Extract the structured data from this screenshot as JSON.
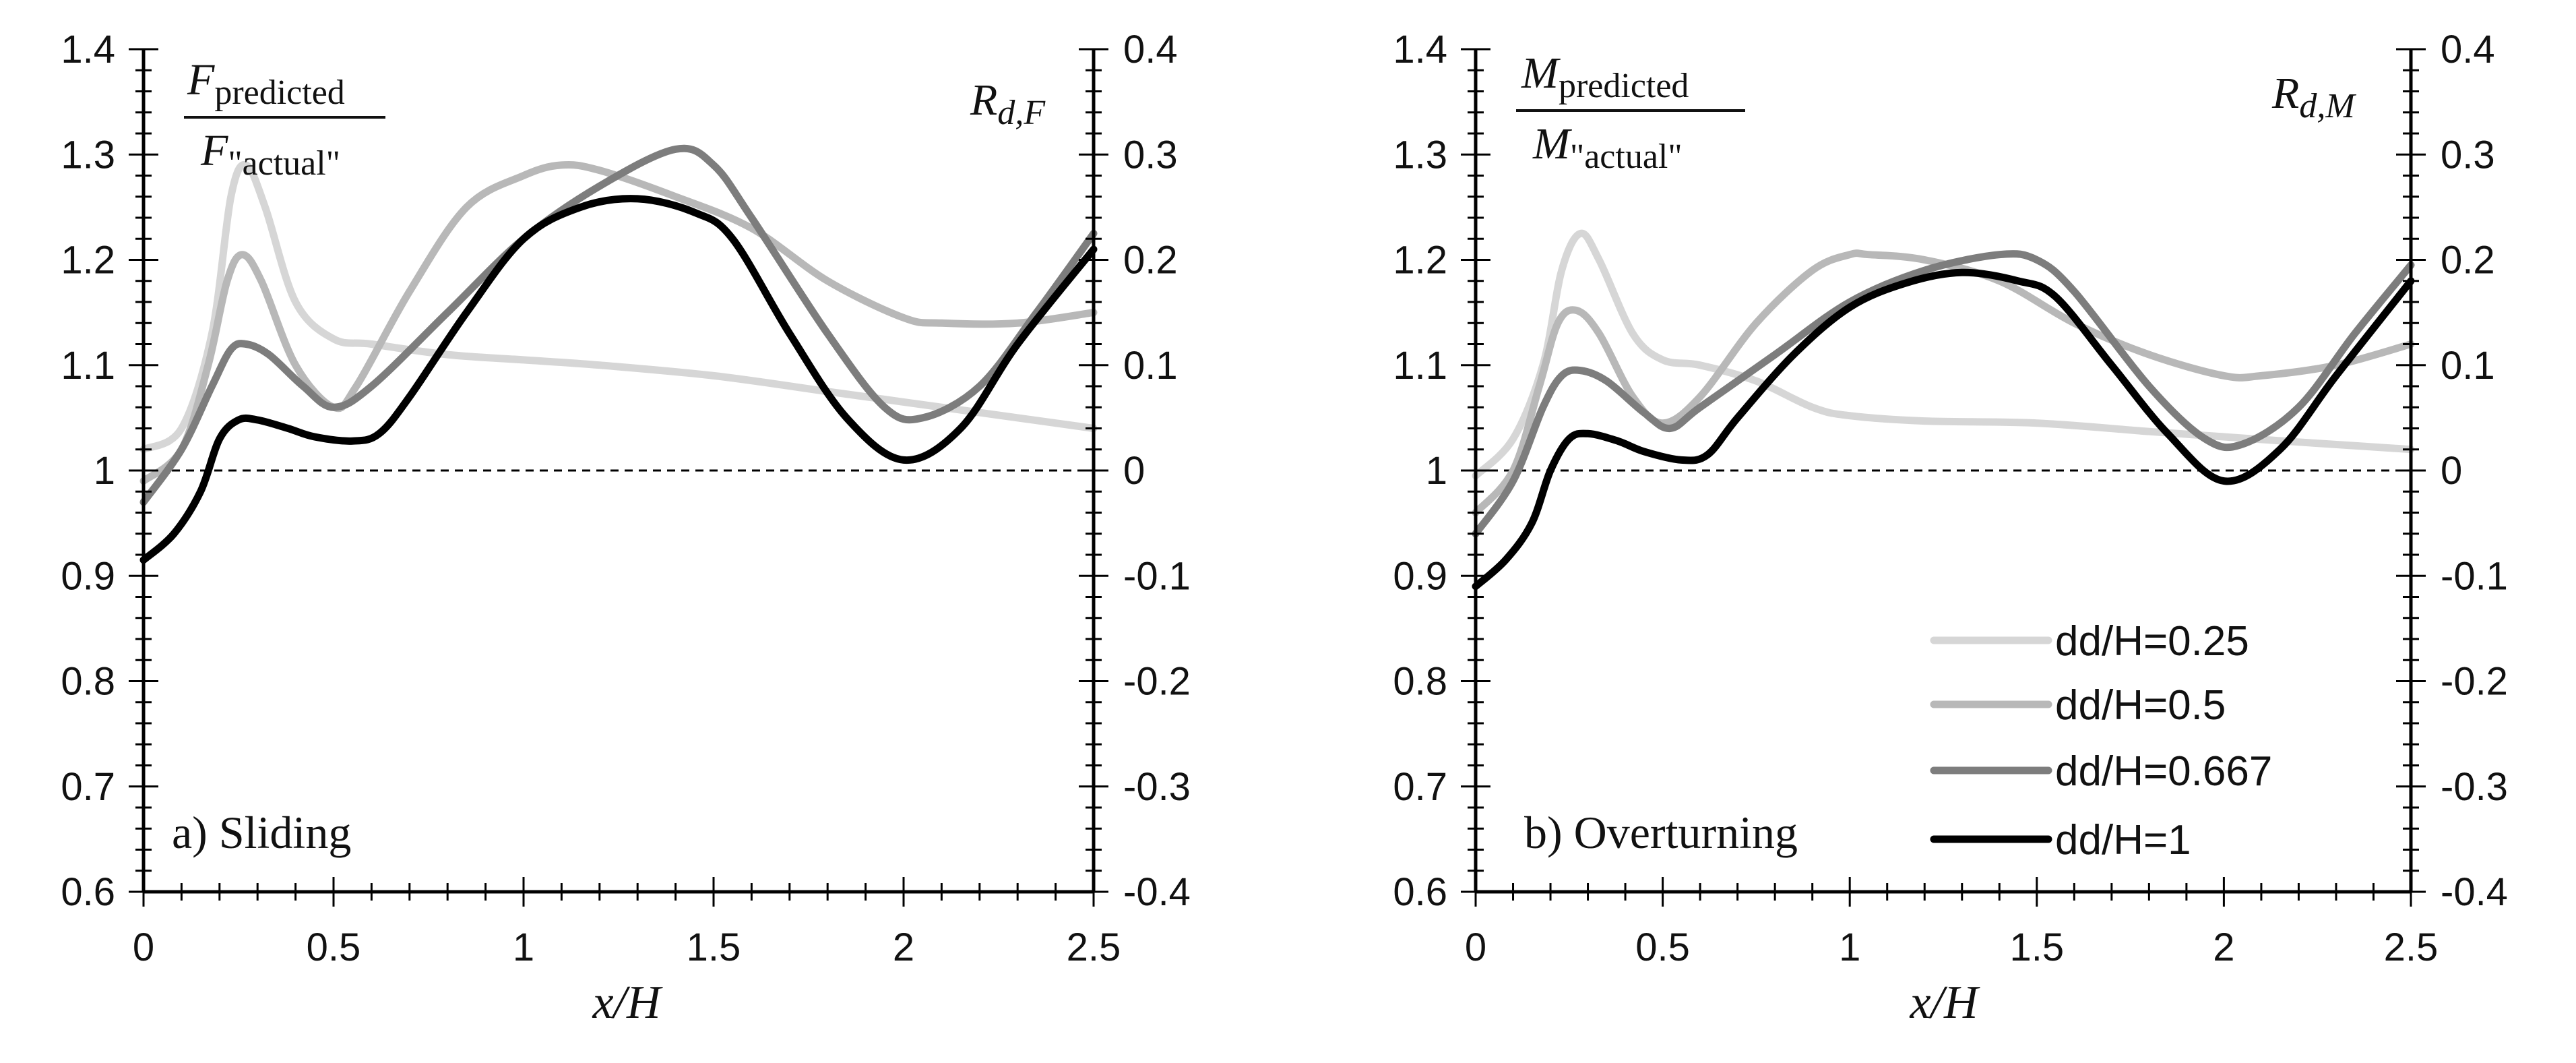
{
  "colors": {
    "s025": "#d6d6d6",
    "s05": "#b8b8b8",
    "s0667": "#7d7d7d",
    "s1": "#000000",
    "axis": "#000000",
    "reference": "#000000"
  },
  "legend": {
    "position": "bottom-right of panel b",
    "entries": [
      "dd/H=0.25",
      "dd/H=0.5",
      "dd/H=0.667",
      "dd/H=1"
    ]
  },
  "chart_data": [
    {
      "type": "line",
      "panel_label": "a) Sliding",
      "xlabel": "x/H",
      "ylabel_ratio": {
        "numerator_base": "F",
        "numerator_sub": "predicted",
        "denominator_base": "F",
        "denominator_sub": "\"actual\""
      },
      "y2label": {
        "base": "R",
        "sub": "d,F"
      },
      "xlim": [
        0,
        2.5
      ],
      "ylim": [
        0.6,
        1.4
      ],
      "y2lim": [
        -0.4,
        0.4
      ],
      "x_ticks": [
        "0",
        "0.5",
        "1",
        "1.5",
        "2",
        "2.5"
      ],
      "y_ticks": [
        "0.6",
        "0.7",
        "0.8",
        "0.9",
        "1",
        "1.1",
        "1.2",
        "1.3",
        "1.4"
      ],
      "y2_ticks": [
        "-0.4",
        "-0.3",
        "-0.2",
        "-0.1",
        "0",
        "0.1",
        "0.2",
        "0.3",
        "0.4"
      ],
      "reference_line": {
        "y": 1.0,
        "style": "dashed"
      },
      "series": [
        {
          "name": "dd/H=0.25",
          "color_key": "s025",
          "x": [
            0,
            0.1,
            0.18,
            0.23,
            0.27,
            0.32,
            0.4,
            0.5,
            0.6,
            0.8,
            1.0,
            1.2,
            1.5,
            1.8,
            2.0,
            2.2,
            2.5
          ],
          "y": [
            1.02,
            1.04,
            1.13,
            1.26,
            1.29,
            1.25,
            1.16,
            1.125,
            1.12,
            1.11,
            1.105,
            1.1,
            1.09,
            1.075,
            1.065,
            1.055,
            1.04
          ]
        },
        {
          "name": "dd/H=0.5",
          "color_key": "s05",
          "x": [
            0,
            0.1,
            0.17,
            0.22,
            0.26,
            0.31,
            0.4,
            0.5,
            0.56,
            0.7,
            0.85,
            1.0,
            1.1,
            1.2,
            1.4,
            1.6,
            1.8,
            2.0,
            2.1,
            2.3,
            2.5
          ],
          "y": [
            0.99,
            1.02,
            1.1,
            1.18,
            1.205,
            1.18,
            1.1,
            1.06,
            1.08,
            1.17,
            1.25,
            1.28,
            1.29,
            1.285,
            1.26,
            1.23,
            1.18,
            1.145,
            1.14,
            1.14,
            1.15
          ]
        },
        {
          "name": "dd/H=0.667",
          "color_key": "s0667",
          "x": [
            0,
            0.1,
            0.18,
            0.23,
            0.27,
            0.33,
            0.42,
            0.5,
            0.6,
            0.8,
            1.0,
            1.2,
            1.4,
            1.5,
            1.6,
            1.8,
            1.95,
            2.05,
            2.2,
            2.35,
            2.5
          ],
          "y": [
            0.97,
            1.02,
            1.08,
            1.115,
            1.12,
            1.11,
            1.08,
            1.06,
            1.08,
            1.15,
            1.22,
            1.27,
            1.305,
            1.29,
            1.24,
            1.13,
            1.06,
            1.05,
            1.08,
            1.15,
            1.225
          ]
        },
        {
          "name": "dd/H=1",
          "color_key": "s1",
          "x": [
            0,
            0.08,
            0.15,
            0.2,
            0.25,
            0.3,
            0.38,
            0.45,
            0.55,
            0.62,
            0.7,
            0.85,
            1.0,
            1.15,
            1.3,
            1.45,
            1.55,
            1.7,
            1.85,
            2.0,
            2.15,
            2.3,
            2.5
          ],
          "y": [
            0.915,
            0.94,
            0.98,
            1.03,
            1.048,
            1.048,
            1.04,
            1.032,
            1.028,
            1.035,
            1.07,
            1.15,
            1.22,
            1.25,
            1.258,
            1.245,
            1.22,
            1.13,
            1.05,
            1.01,
            1.04,
            1.12,
            1.21
          ]
        }
      ]
    },
    {
      "type": "line",
      "panel_label": "b) Overturning",
      "xlabel": "x/H",
      "ylabel_ratio": {
        "numerator_base": "M",
        "numerator_sub": "predicted",
        "denominator_base": "M",
        "denominator_sub": "\"actual\""
      },
      "y2label": {
        "base": "R",
        "sub": "d,M"
      },
      "xlim": [
        0,
        2.5
      ],
      "ylim": [
        0.6,
        1.4
      ],
      "y2lim": [
        -0.4,
        0.4
      ],
      "x_ticks": [
        "0",
        "0.5",
        "1",
        "1.5",
        "2",
        "2.5"
      ],
      "y_ticks": [
        "0.6",
        "0.7",
        "0.8",
        "0.9",
        "1",
        "1.1",
        "1.2",
        "1.3",
        "1.4"
      ],
      "y2_ticks": [
        "-0.4",
        "-0.3",
        "-0.2",
        "-0.1",
        "0",
        "0.1",
        "0.2",
        "0.3",
        "0.4"
      ],
      "reference_line": {
        "y": 1.0,
        "style": "dashed"
      },
      "series": [
        {
          "name": "dd/H=0.25",
          "color_key": "s025",
          "x": [
            0,
            0.1,
            0.18,
            0.23,
            0.28,
            0.33,
            0.42,
            0.5,
            0.6,
            0.75,
            0.9,
            1.0,
            1.2,
            1.5,
            1.8,
            2.0,
            2.2,
            2.5
          ],
          "y": [
            0.995,
            1.03,
            1.1,
            1.19,
            1.225,
            1.2,
            1.13,
            1.105,
            1.1,
            1.085,
            1.06,
            1.052,
            1.047,
            1.045,
            1.037,
            1.032,
            1.027,
            1.02
          ]
        },
        {
          "name": "dd/H=0.5",
          "color_key": "s05",
          "x": [
            0,
            0.1,
            0.17,
            0.22,
            0.27,
            0.33,
            0.42,
            0.5,
            0.6,
            0.75,
            0.9,
            1.0,
            1.05,
            1.2,
            1.4,
            1.6,
            1.8,
            2.0,
            2.1,
            2.3,
            2.5
          ],
          "y": [
            0.96,
            1.0,
            1.08,
            1.14,
            1.152,
            1.13,
            1.07,
            1.045,
            1.07,
            1.14,
            1.19,
            1.205,
            1.205,
            1.2,
            1.18,
            1.14,
            1.11,
            1.09,
            1.09,
            1.1,
            1.12
          ]
        },
        {
          "name": "dd/H=0.667",
          "color_key": "s0667",
          "x": [
            0,
            0.1,
            0.18,
            0.23,
            0.28,
            0.35,
            0.45,
            0.52,
            0.6,
            0.8,
            1.0,
            1.2,
            1.4,
            1.5,
            1.6,
            1.8,
            1.95,
            2.05,
            2.2,
            2.35,
            2.5
          ],
          "y": [
            0.94,
            0.99,
            1.06,
            1.09,
            1.095,
            1.085,
            1.055,
            1.04,
            1.06,
            1.11,
            1.16,
            1.19,
            1.205,
            1.2,
            1.17,
            1.08,
            1.03,
            1.025,
            1.06,
            1.13,
            1.195
          ]
        },
        {
          "name": "dd/H=1",
          "color_key": "s1",
          "x": [
            0,
            0.08,
            0.15,
            0.2,
            0.25,
            0.3,
            0.38,
            0.45,
            0.55,
            0.62,
            0.7,
            0.85,
            1.0,
            1.15,
            1.3,
            1.45,
            1.55,
            1.7,
            1.85,
            2.0,
            2.15,
            2.3,
            2.5
          ],
          "y": [
            0.89,
            0.915,
            0.95,
            1.0,
            1.03,
            1.035,
            1.028,
            1.018,
            1.01,
            1.015,
            1.05,
            1.11,
            1.155,
            1.178,
            1.188,
            1.18,
            1.165,
            1.1,
            1.035,
            0.99,
            1.02,
            1.09,
            1.18
          ]
        }
      ]
    }
  ]
}
